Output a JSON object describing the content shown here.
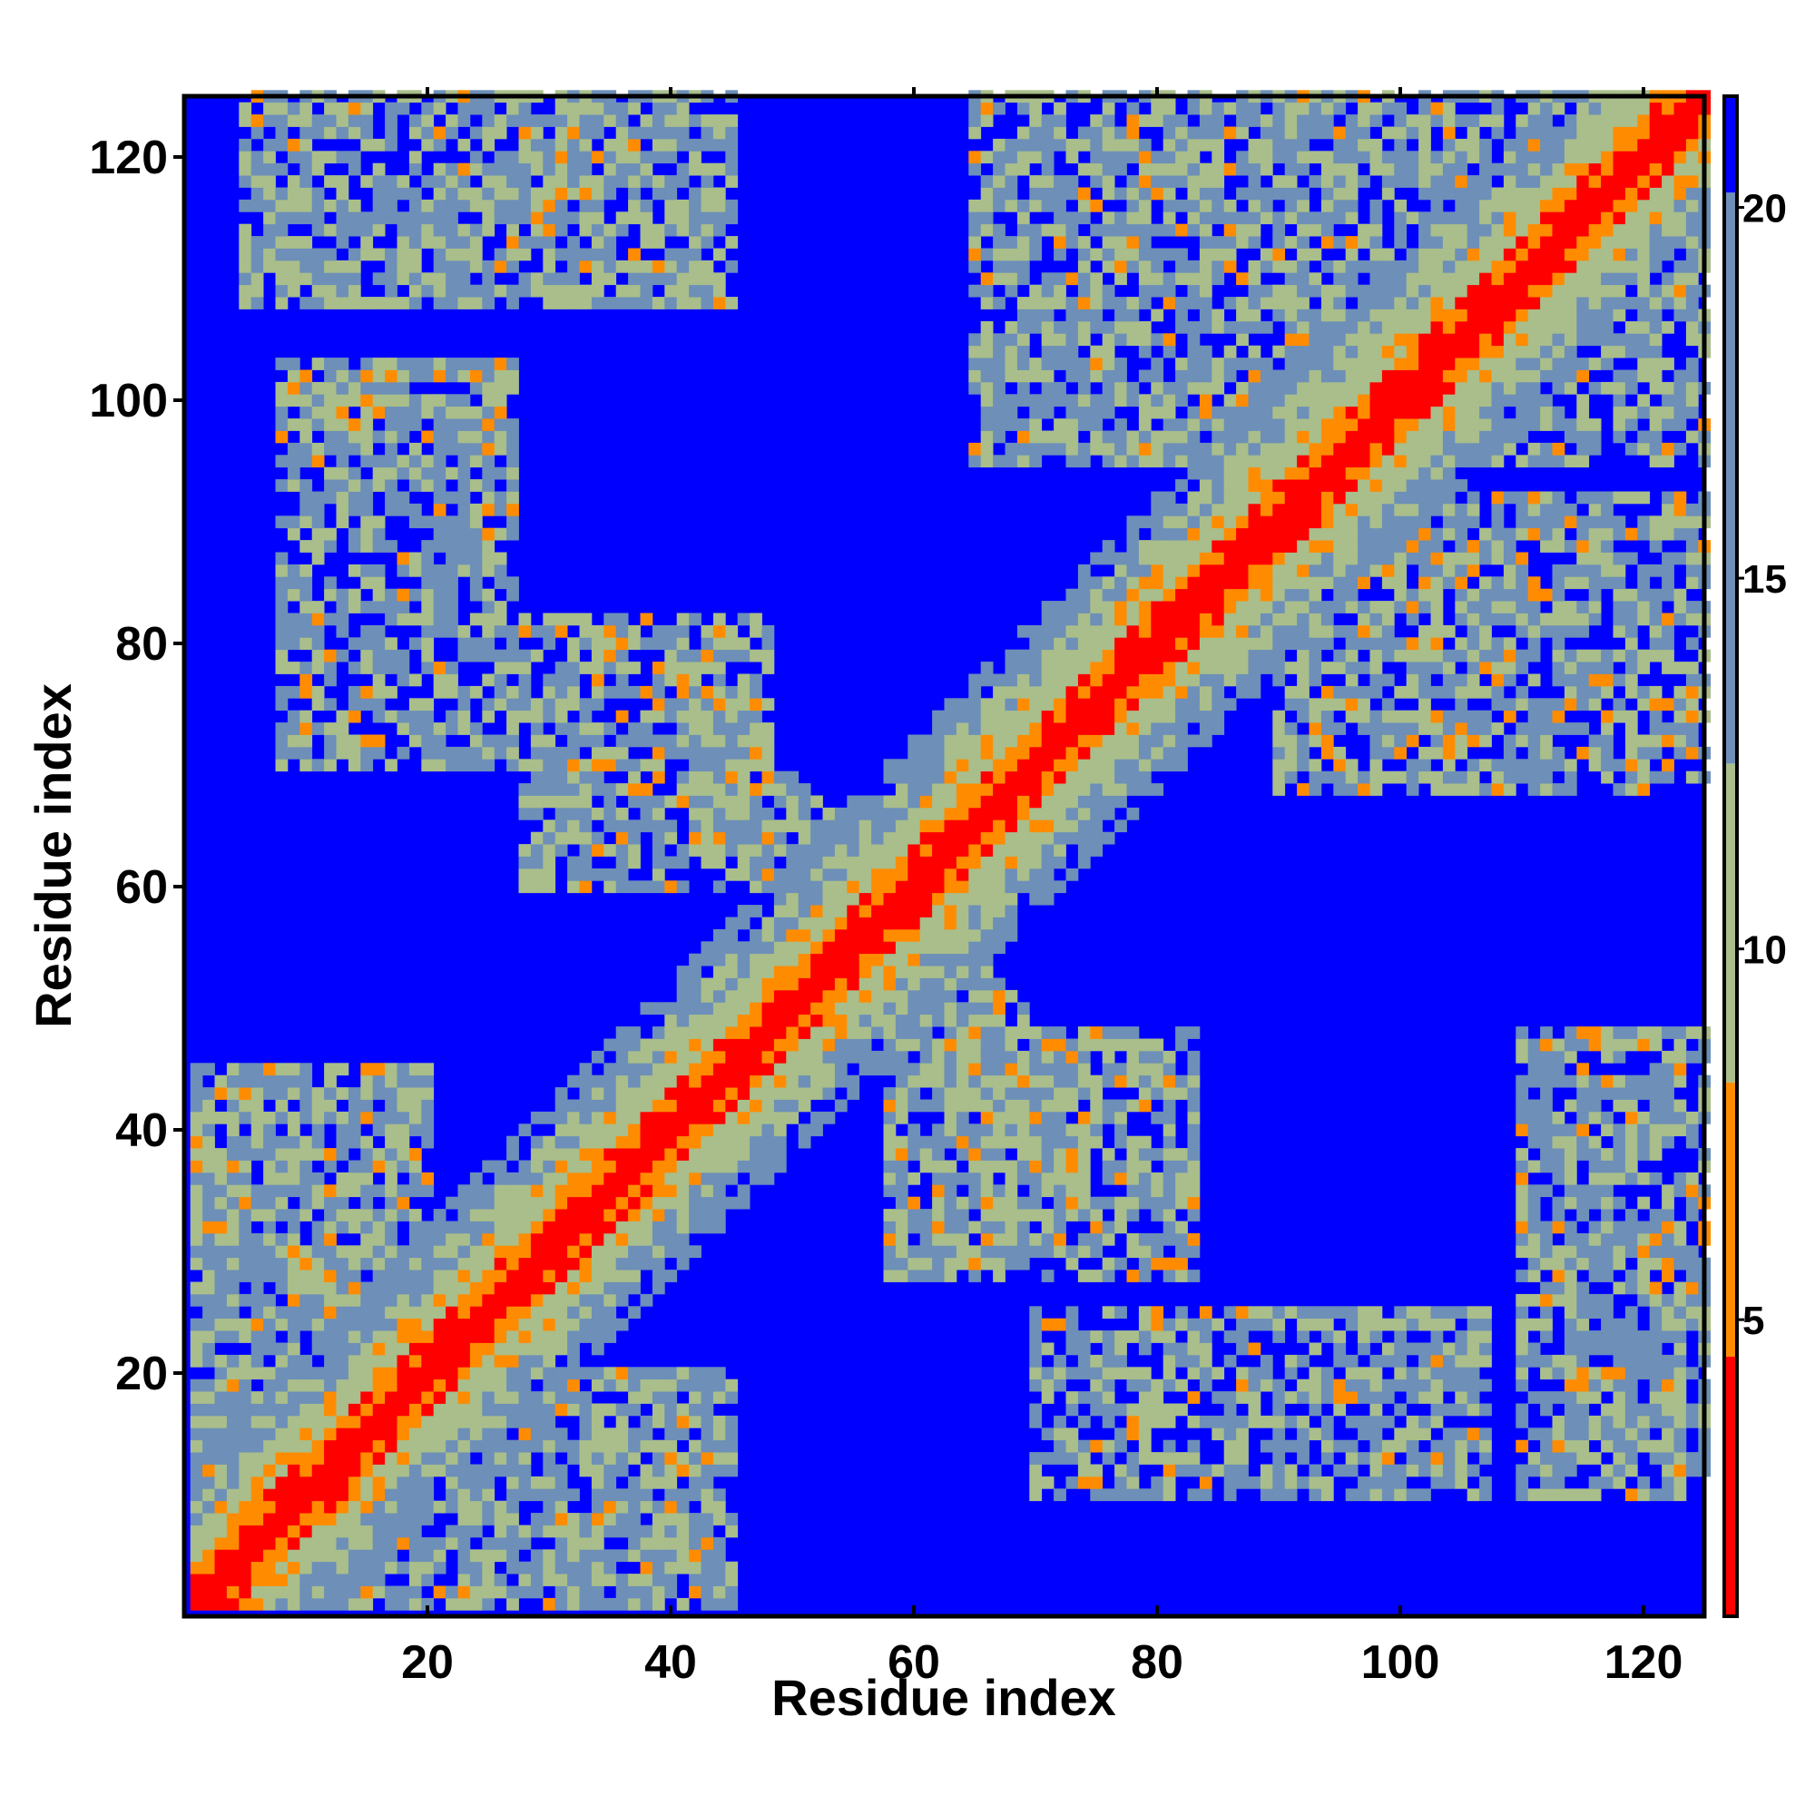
{
  "chart_data": {
    "type": "heatmap",
    "title": "",
    "xlabel": "Residue index",
    "ylabel": "Residue index",
    "n_residues": 125,
    "xlim": [
      1,
      125
    ],
    "ylim": [
      1,
      125
    ],
    "x_ticks": [
      20,
      40,
      60,
      80,
      100,
      120
    ],
    "y_ticks": [
      20,
      40,
      60,
      80,
      100,
      120
    ],
    "colorbar": {
      "range": [
        1,
        21.5
      ],
      "ticks": [
        5,
        10,
        15,
        20
      ],
      "colors": {
        "diagonal": "#ff0000",
        "near": "#ff8c00",
        "mid": "#a9be8a",
        "far": "#6d8fb8",
        "none": "#0000ff"
      }
    },
    "contact_regions": [
      {
        "x": [
          1,
          20
        ],
        "y": [
          1,
          45
        ],
        "strength": 0.85
      },
      {
        "x": [
          1,
          45
        ],
        "y": [
          1,
          20
        ],
        "strength": 0.85
      },
      {
        "x": [
          20,
          45
        ],
        "y": [
          1,
          20
        ],
        "strength": 0.75
      },
      {
        "x": [
          5,
          45
        ],
        "y": [
          108,
          125
        ],
        "strength": 0.75
      },
      {
        "x": [
          8,
          27
        ],
        "y": [
          90,
          103
        ],
        "strength": 0.8
      },
      {
        "x": [
          8,
          27
        ],
        "y": [
          70,
          90
        ],
        "strength": 0.7
      },
      {
        "x": [
          28,
          48
        ],
        "y": [
          60,
          82
        ],
        "strength": 0.75
      },
      {
        "x": [
          58,
          83
        ],
        "y": [
          28,
          48
        ],
        "strength": 0.75
      },
      {
        "x": [
          70,
          95
        ],
        "y": [
          10,
          25
        ],
        "strength": 0.7
      },
      {
        "x": [
          93,
          107
        ],
        "y": [
          10,
          25
        ],
        "strength": 0.8
      },
      {
        "x": [
          110,
          125
        ],
        "y": [
          10,
          48
        ],
        "strength": 0.75
      },
      {
        "x": [
          90,
          125
        ],
        "y": [
          68,
          92
        ],
        "strength": 0.75
      },
      {
        "x": [
          65,
          95
        ],
        "y": [
          95,
          125
        ],
        "strength": 0.75
      },
      {
        "x": [
          95,
          125
        ],
        "y": [
          95,
          125
        ],
        "strength": 0.7
      }
    ]
  }
}
